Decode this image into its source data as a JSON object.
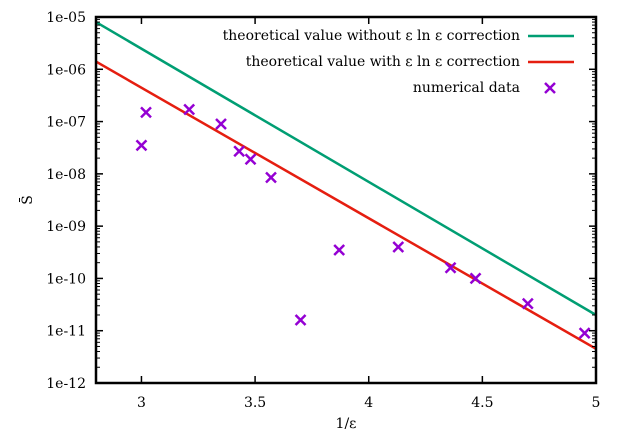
{
  "chart_data": {
    "type": "scatter",
    "title": "",
    "xlabel": "1/ε",
    "ylabel": "S̄",
    "xlim": [
      2.8,
      5
    ],
    "ylim": [
      1e-12,
      1e-05
    ],
    "yscale": "log",
    "grid": false,
    "legend_position": "top-right",
    "x_ticks": [
      3,
      3.5,
      4,
      4.5,
      5
    ],
    "x_tick_labels": [
      "3",
      "3.5",
      "4",
      "4.5",
      "5"
    ],
    "y_ticks": [
      1e-05,
      1e-06,
      1e-07,
      1e-08,
      1e-09,
      1e-10,
      1e-11,
      1e-12
    ],
    "y_tick_labels": [
      "1e-05",
      "1e-06",
      "1e-07",
      "1e-08",
      "1e-09",
      "1e-10",
      "1e-11",
      "1e-12"
    ],
    "series": [
      {
        "name": "theoretical value without ε ln ε correction",
        "kind": "line",
        "color": "#009e73",
        "x": [
          2.8,
          5.0
        ],
        "y": [
          8e-06,
          2e-11
        ]
      },
      {
        "name": "theoretical value with ε ln ε correction",
        "kind": "line",
        "color": "#e51e10",
        "x": [
          2.8,
          5.0
        ],
        "y": [
          1.4e-06,
          4.5e-12
        ]
      },
      {
        "name": "numerical data",
        "kind": "points",
        "marker": "x",
        "color": "#9400d3",
        "x": [
          3.0,
          3.02,
          3.21,
          3.35,
          3.43,
          3.48,
          3.57,
          3.7,
          3.87,
          4.13,
          4.36,
          4.47,
          4.7,
          4.95
        ],
        "y": [
          3.5e-08,
          1.5e-07,
          1.7e-07,
          9e-08,
          2.7e-08,
          1.9e-08,
          8.5e-09,
          1.6e-11,
          3.5e-10,
          4e-10,
          1.6e-10,
          1e-10,
          3.3e-11,
          9e-12
        ]
      }
    ]
  },
  "legend": {
    "items": [
      {
        "label": "theoretical value without ε ln ε correction"
      },
      {
        "label": "theoretical value with ε ln ε correction"
      },
      {
        "label": "numerical data"
      }
    ]
  },
  "axes": {
    "xlabel": "1/ε",
    "ylabel": "S̄"
  }
}
